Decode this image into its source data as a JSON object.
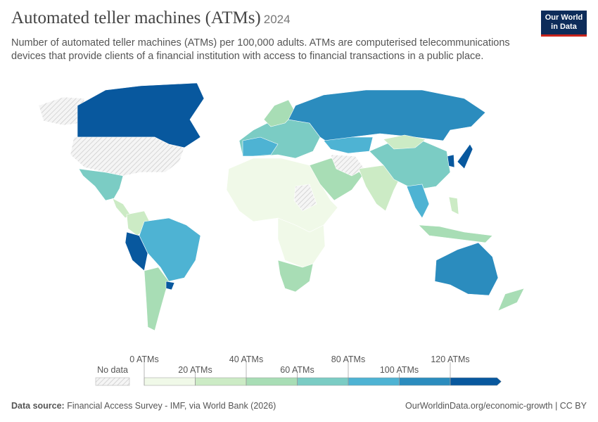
{
  "header": {
    "title": "Automated teller machines (ATMs)",
    "year": "2024",
    "subtitle": "Number of automated teller machines (ATMs) per 100,000 adults. ATMs are computerised telecommunications devices that provide clients of a financial institution with access to financial transactions in a public place.",
    "logo": [
      "Our World",
      "in Data"
    ]
  },
  "legend": {
    "no_data": "No data",
    "ticks": [
      {
        "value": 0,
        "label": "0 ATMs"
      },
      {
        "value": 20,
        "label": "20 ATMs"
      },
      {
        "value": 40,
        "label": "40 ATMs"
      },
      {
        "value": 60,
        "label": "60 ATMs"
      },
      {
        "value": 80,
        "label": "80 ATMs"
      },
      {
        "value": 100,
        "label": "100 ATMs"
      },
      {
        "value": 120,
        "label": "120 ATMs"
      }
    ],
    "colors": [
      "#f0f9e8",
      "#ccebc5",
      "#a8ddb5",
      "#7bccc4",
      "#4eb3d3",
      "#2b8cbe",
      "#08589e"
    ]
  },
  "footer": {
    "source_label": "Data source:",
    "source": "Financial Access Survey - IMF, via World Bank (2026)",
    "link": "OurWorldinData.org/economic-growth | CC BY"
  }
}
